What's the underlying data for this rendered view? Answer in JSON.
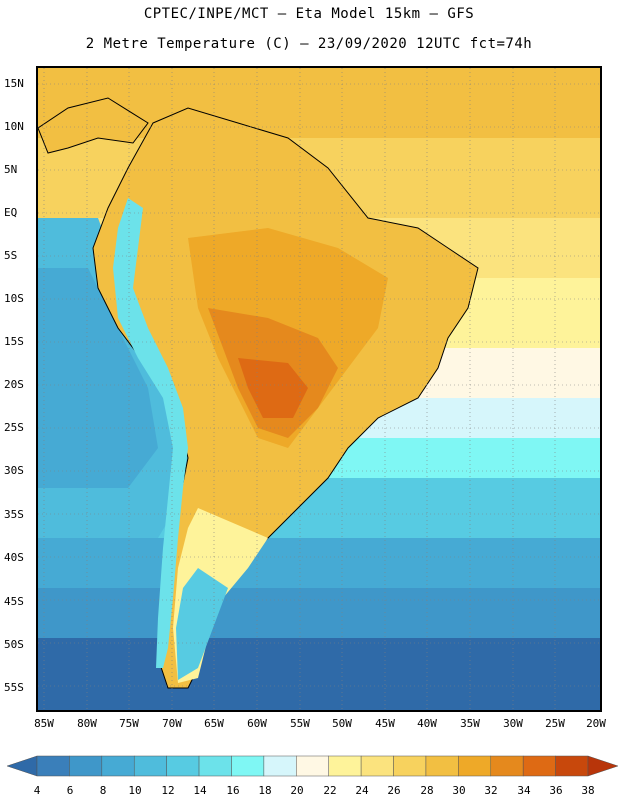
{
  "header": {
    "line1": "CPTEC/INPE/MCT –  Eta Model 15km – GFS",
    "line2": "2 Metre Temperature (C) – 23/09/2020 12UTC fct=74h"
  },
  "axes": {
    "lat_labels": [
      "15N",
      "10N",
      "5N",
      "EQ",
      "5S",
      "10S",
      "15S",
      "20S",
      "25S",
      "30S",
      "35S",
      "40S",
      "45S",
      "50S",
      "55S"
    ],
    "lon_labels": [
      "85W",
      "80W",
      "75W",
      "70W",
      "65W",
      "60W",
      "55W",
      "50W",
      "45W",
      "40W",
      "35W",
      "30W",
      "25W",
      "20W"
    ]
  },
  "legend": {
    "levels": [
      "4",
      "6",
      "8",
      "10",
      "12",
      "14",
      "16",
      "18",
      "20",
      "22",
      "24",
      "26",
      "28",
      "30",
      "32",
      "34",
      "36",
      "38"
    ],
    "colors": [
      "#2f6aa8",
      "#3a7fba",
      "#3f97c9",
      "#46aad4",
      "#4fbcdc",
      "#57cbe2",
      "#6ce2ea",
      "#7ff7f4",
      "#d6f6fb",
      "#fff8e4",
      "#fef39a",
      "#fbe37e",
      "#f7d25e",
      "#f2bf42",
      "#eea928",
      "#e5891d",
      "#de6a14",
      "#c8480c",
      "#b8350a"
    ]
  }
}
